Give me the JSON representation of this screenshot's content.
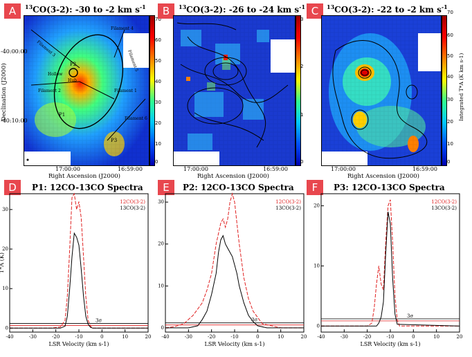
{
  "panels_top": [
    {
      "tag": "A",
      "title": "13CO(3-2): -30 to -2 km s-1",
      "title_sup": "13",
      "title_rest": "CO(3-2):  -30 to -2 km s",
      "title_exp": "-1",
      "cbar_ticks": [
        "70",
        "60",
        "50",
        "40",
        "30",
        "20",
        "10",
        "0"
      ],
      "xticks": [
        "17:00:00",
        "16:59:00"
      ],
      "yticks": [
        "-40:00:00",
        "-40:10:00"
      ],
      "xlabel": "Right Ascension (J2000)",
      "ylabel": "Declination (J2000)",
      "annotations": [
        "Filament 1",
        "Filament 2",
        "Filament 3",
        "Filament 4",
        "Filament 5",
        "Filament 6",
        "P1",
        "P2",
        "P3",
        "Hub",
        "Hollow"
      ]
    },
    {
      "tag": "B",
      "title": "13CO(3-2): -26 to -24 km s-1",
      "title_sup": "13",
      "title_rest": "CO(3-2):  -26 to -24 km s",
      "title_exp": "-1",
      "cbar_ticks": [
        "3",
        "2",
        "1",
        "0"
      ],
      "xticks": [
        "17:00:00",
        "16:59:00"
      ],
      "xlabel": "Right Ascension (J2000)"
    },
    {
      "tag": "C",
      "title": "13CO(3-2): -22 to -2 km s-1",
      "title_sup": "13",
      "title_rest": "CO(3-2):  -22 to -2 km s",
      "title_exp": "-1",
      "cbar_ticks": [
        "70",
        "60",
        "50",
        "40",
        "30",
        "20",
        "10",
        "0"
      ],
      "cbar_label": "Integrated T*A (K km s-1)",
      "xticks": [
        "17:00:00",
        "16:59:00"
      ],
      "xlabel": "Right Ascension (J2000)"
    }
  ],
  "panels_bottom": [
    {
      "tag": "D",
      "title": "P1: 12CO-13CO Spectra",
      "xlabel": "LSR Velocity (km s-1)",
      "ylabel": "T*A (K)",
      "sigma": "3σ"
    },
    {
      "tag": "E",
      "title": "P2: 12CO-13CO Spectra",
      "xlabel": "LSR Velocity (km s-1)",
      "sigma": "3σ"
    },
    {
      "tag": "F",
      "title": "P3: 12CO-13CO Spectra",
      "xlabel": "LSR Velocity (km s-1)",
      "sigma": "3σ"
    }
  ],
  "legend": {
    "co12": "12CO(3-2)",
    "co13": "13CO(3-2)"
  },
  "chart_data": [
    {
      "type": "line",
      "title": "P1: 12CO-13CO Spectra",
      "xlabel": "LSR Velocity (km s-1)",
      "ylabel": "T*A (K)",
      "xlim": [
        -40,
        20
      ],
      "ylim": [
        -1,
        34
      ],
      "xticks": [
        -40,
        -30,
        -20,
        -10,
        0,
        10,
        20
      ],
      "yticks": [
        0,
        10,
        20,
        30
      ],
      "series": [
        {
          "name": "12CO(3-2)",
          "color": "#e02020",
          "dash": true,
          "x": [
            -40,
            -22,
            -18,
            -16,
            -15,
            -14,
            -13,
            -12,
            -11,
            -10,
            -9,
            -8,
            -7,
            -6,
            -5,
            -4,
            -2,
            20
          ],
          "y": [
            0,
            0,
            0.3,
            2,
            8,
            20,
            33,
            34,
            30,
            32,
            28,
            18,
            8,
            2,
            0.5,
            0,
            0,
            0
          ]
        },
        {
          "name": "13CO(3-2)",
          "color": "#000000",
          "dash": false,
          "x": [
            -40,
            -18,
            -16,
            -15,
            -14,
            -13,
            -12,
            -11,
            -10,
            -9,
            -8,
            -7,
            -6,
            -5,
            -4,
            20
          ],
          "y": [
            0,
            0,
            0.5,
            3,
            10,
            18,
            24,
            23,
            21,
            15,
            8,
            3,
            1,
            0.2,
            0,
            0
          ]
        }
      ],
      "sigma_level": 1.2
    },
    {
      "type": "line",
      "title": "P2: 12CO-13CO Spectra",
      "xlabel": "LSR Velocity (km s-1)",
      "xlim": [
        -40,
        20
      ],
      "ylim": [
        -1,
        32
      ],
      "xticks": [
        -40,
        -30,
        -20,
        -10,
        0,
        10,
        20
      ],
      "yticks": [
        0,
        10,
        20,
        30
      ],
      "series": [
        {
          "name": "12CO(3-2)",
          "color": "#e02020",
          "dash": true,
          "x": [
            -40,
            -36,
            -32,
            -30,
            -28,
            -26,
            -24,
            -22,
            -20,
            -18,
            -16,
            -15,
            -14,
            -13,
            -12,
            -11,
            -10,
            -9,
            -8,
            -6,
            -4,
            -2,
            0,
            2,
            6,
            10,
            20
          ],
          "y": [
            0,
            0.3,
            1,
            2,
            3,
            4.5,
            6,
            9,
            13,
            20,
            25,
            26,
            24,
            26,
            30,
            32,
            30,
            25,
            20,
            12,
            7,
            4,
            2.5,
            1,
            0.5,
            0,
            0
          ]
        },
        {
          "name": "13CO(3-2)",
          "color": "#000000",
          "dash": false,
          "x": [
            -40,
            -30,
            -26,
            -24,
            -22,
            -20,
            -18,
            -17,
            -16,
            -15,
            -14,
            -13,
            -12,
            -11,
            -10,
            -9,
            -8,
            -6,
            -4,
            -2,
            0,
            4,
            20
          ],
          "y": [
            0,
            0,
            0.5,
            2,
            4,
            8,
            13,
            18,
            21,
            22,
            20,
            19,
            18,
            17,
            15,
            13,
            10,
            6,
            3,
            1.5,
            0.5,
            0,
            0
          ]
        }
      ],
      "sigma_level": 1.2
    },
    {
      "type": "line",
      "title": "P3: 12CO-13CO Spectra",
      "xlabel": "LSR Velocity (km s-1)",
      "xlim": [
        -40,
        20
      ],
      "ylim": [
        -1,
        22
      ],
      "xticks": [
        -40,
        -30,
        -20,
        -10,
        0,
        10,
        20
      ],
      "yticks": [
        0,
        10,
        20
      ],
      "series": [
        {
          "name": "12CO(3-2)",
          "color": "#e02020",
          "dash": true,
          "x": [
            -40,
            -20,
            -18,
            -17,
            -16,
            -15,
            -14,
            -13,
            -12,
            -11,
            -10,
            -9,
            -8,
            -7,
            -6,
            20
          ],
          "y": [
            0,
            0,
            0.5,
            3,
            7,
            10,
            7,
            6,
            14,
            20,
            21,
            14,
            5,
            1,
            0,
            0
          ]
        },
        {
          "name": "13CO(3-2)",
          "color": "#000000",
          "dash": false,
          "x": [
            -40,
            -16,
            -15,
            -14,
            -13,
            -12,
            -11,
            -10,
            -9,
            -8,
            -7,
            20
          ],
          "y": [
            0,
            0,
            0.5,
            1.5,
            4,
            12,
            19,
            17,
            8,
            2,
            0.3,
            0
          ]
        }
      ],
      "sigma_level": 1.2
    }
  ]
}
